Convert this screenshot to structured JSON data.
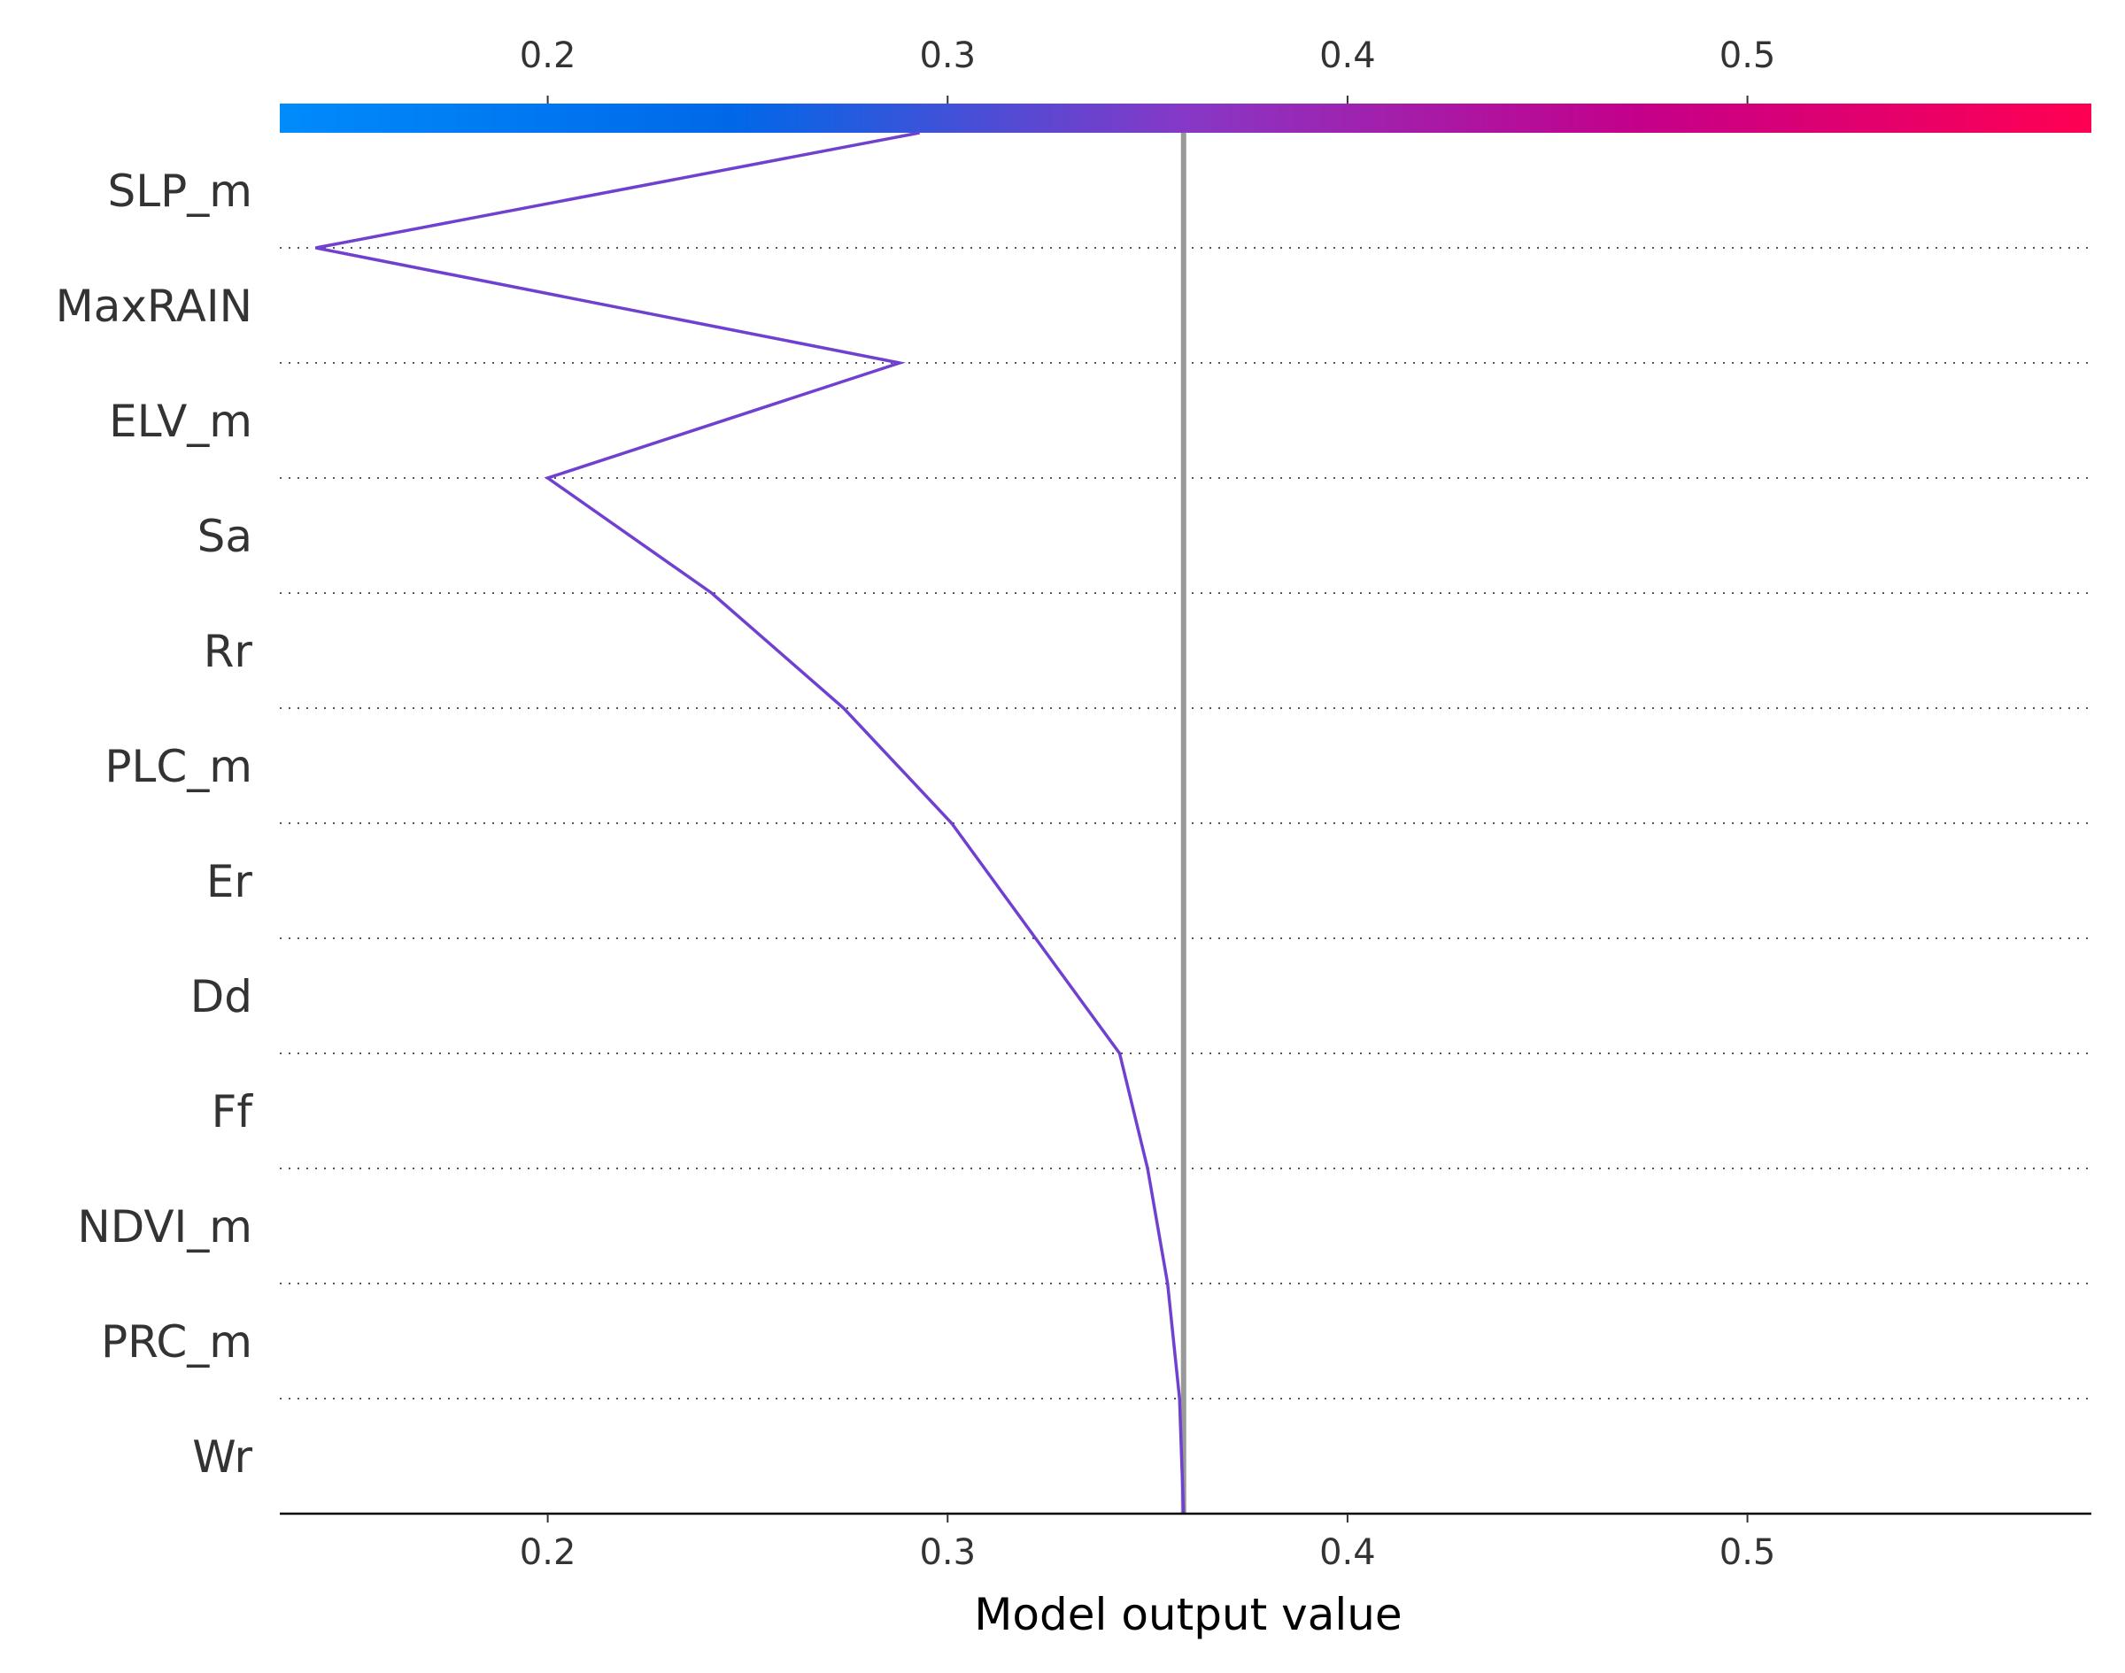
{
  "chart_data": {
    "type": "line",
    "xlabel": "Model output value",
    "ylabel": "",
    "xlim": [
      0.133,
      0.586
    ],
    "xticks": [
      0.2,
      0.3,
      0.4,
      0.5
    ],
    "tick_labels": [
      "0.2",
      "0.3",
      "0.4",
      "0.5"
    ],
    "features": [
      "SLP_m",
      "MaxRAIN",
      "ELV_m",
      "Sa",
      "Rr",
      "PLC_m",
      "Er",
      "Dd",
      "Ff",
      "NDVI_m",
      "PRC_m",
      "Wr"
    ],
    "path_x": [
      0.293,
      0.142,
      0.288,
      0.2,
      0.241,
      0.274,
      0.301,
      0.322,
      0.343,
      0.35,
      0.355,
      0.358,
      0.359
    ],
    "expected_value": 0.359,
    "colorbar": {
      "range": [
        0.133,
        0.586
      ],
      "stops": [
        "#008bfb",
        "#0068e8",
        "#8738c6",
        "#c4008a",
        "#ff0052"
      ]
    },
    "line_color": "#7040d0",
    "reference_line_color": "#999999",
    "grid": "dotted-horizontal"
  }
}
